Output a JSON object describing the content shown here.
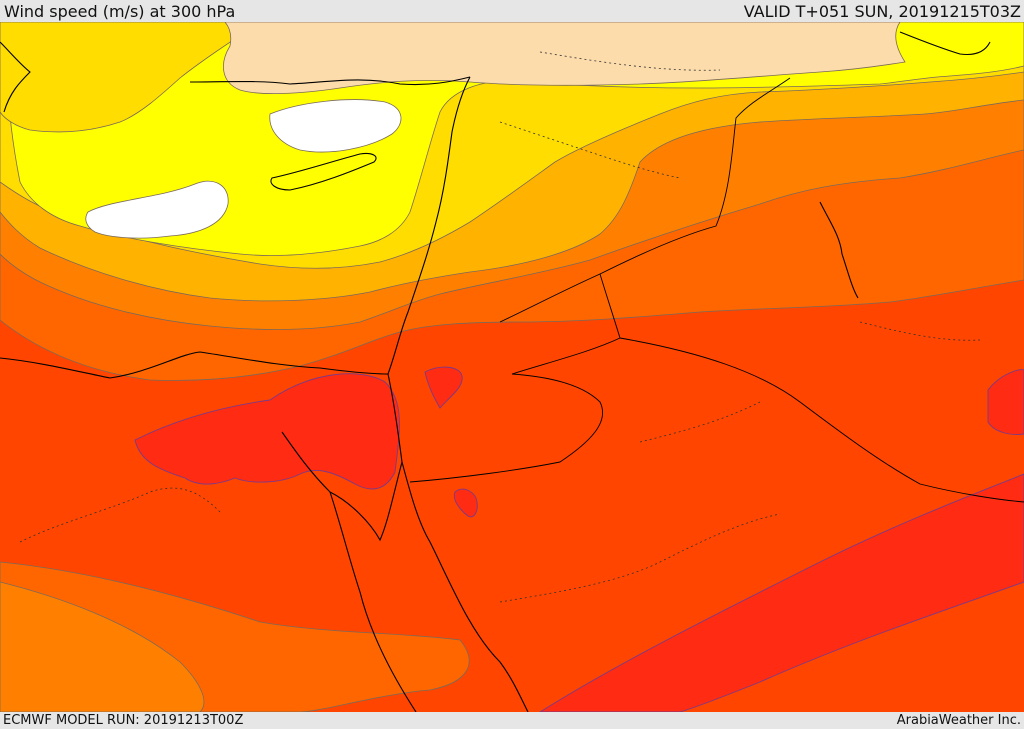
{
  "header": {
    "title": "Wind speed (m/s) at 300 hPa",
    "valid": "VALID T+051 SUN, 20191215T03Z"
  },
  "footer": {
    "model_run": "ECMWF MODEL RUN: 20191213T00Z",
    "brand": "ArabiaWeather Inc."
  },
  "map": {
    "colors": {
      "band_white": "#ffffff",
      "band_peach": "#fddcab",
      "band_yellow": "#ffff00",
      "band_gold": "#ffdd00",
      "band_amber": "#ffb300",
      "band_orange": "#ff8000",
      "band_dark_orange": "#ff6600",
      "band_red_orange": "#ff4500",
      "band_red": "#ff2b12",
      "contour": "#7a6a5a",
      "coastline": "#000000"
    }
  }
}
